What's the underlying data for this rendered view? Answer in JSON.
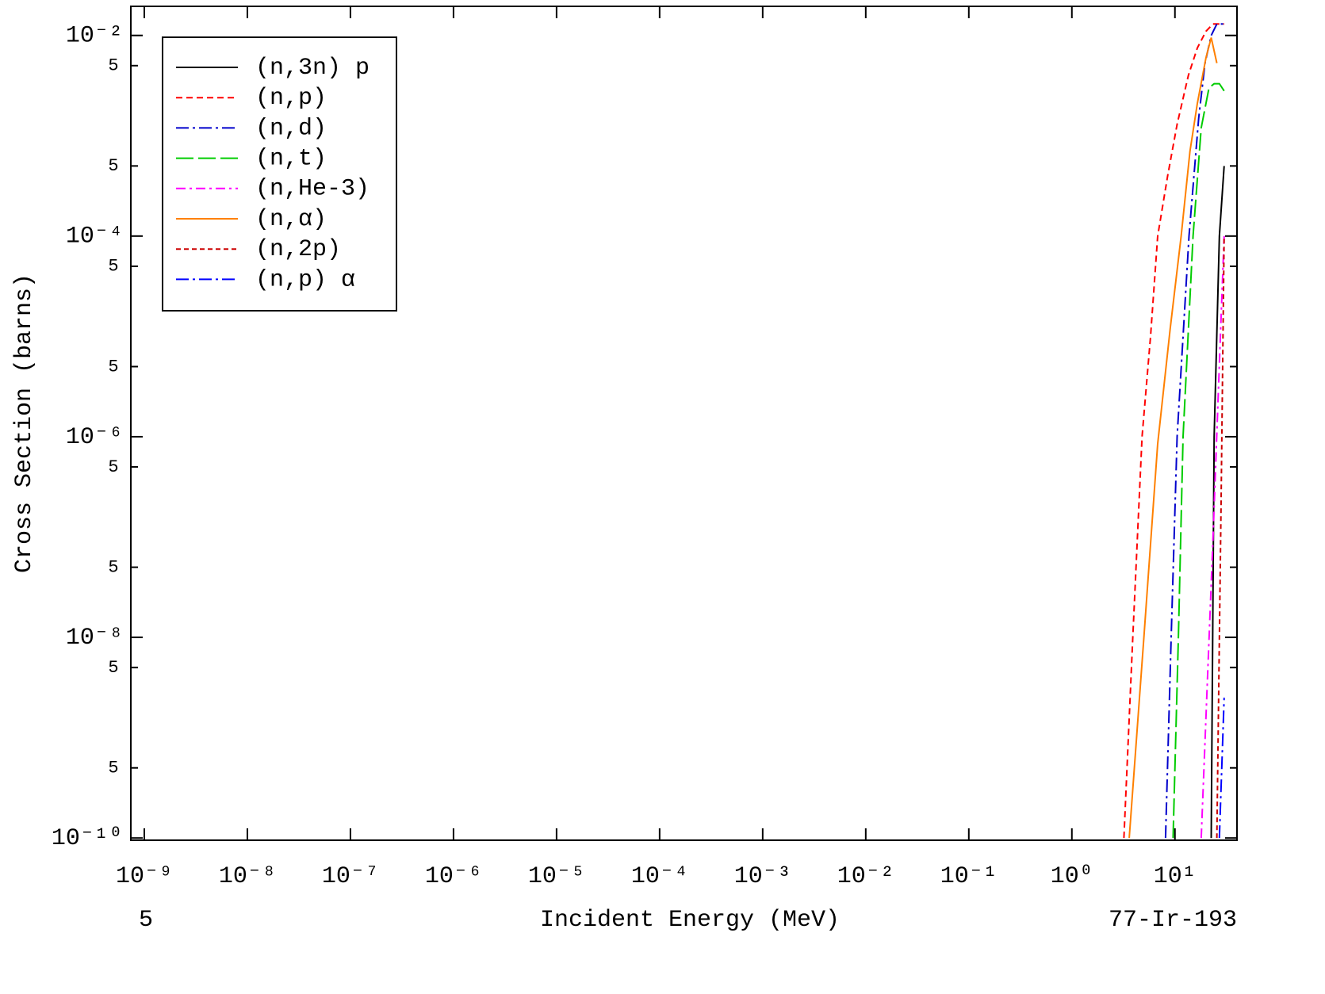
{
  "chart_data": {
    "type": "line",
    "xlabel": "Incident Energy (MeV)",
    "ylabel": "Cross Section (barns)",
    "annotations": [
      "5",
      "77-Ir-193"
    ],
    "xscale": "log",
    "yscale": "log",
    "xlim": [
      7.4e-10,
      40
    ],
    "ylim": [
      9.5e-11,
      0.0195
    ],
    "xticks": [
      {
        "value": 1e-09,
        "label": "10⁻⁹"
      },
      {
        "value": 1e-08,
        "label": "10⁻⁸"
      },
      {
        "value": 1e-07,
        "label": "10⁻⁷"
      },
      {
        "value": 1e-06,
        "label": "10⁻⁶"
      },
      {
        "value": 1e-05,
        "label": "10⁻⁵"
      },
      {
        "value": 0.0001,
        "label": "10⁻⁴"
      },
      {
        "value": 0.001,
        "label": "10⁻³"
      },
      {
        "value": 0.01,
        "label": "10⁻²"
      },
      {
        "value": 0.1,
        "label": "10⁻¹"
      },
      {
        "value": 1,
        "label": "10⁰"
      },
      {
        "value": 10,
        "label": "10¹"
      }
    ],
    "yticks": [
      {
        "value": 0.01,
        "label": "10⁻²"
      },
      {
        "value": 0.005,
        "label": "5"
      },
      {
        "value": 0.0005,
        "label": "5"
      },
      {
        "value": 0.0001,
        "label": "10⁻⁴"
      },
      {
        "value": 5e-05,
        "label": "5"
      },
      {
        "value": 5e-06,
        "label": "5"
      },
      {
        "value": 1e-06,
        "label": "10⁻⁶"
      },
      {
        "value": 5e-07,
        "label": "5"
      },
      {
        "value": 5e-08,
        "label": "5"
      },
      {
        "value": 1e-08,
        "label": "10⁻⁸"
      },
      {
        "value": 5e-09,
        "label": "5"
      },
      {
        "value": 5e-10,
        "label": "5"
      },
      {
        "value": 1e-10,
        "label": "10⁻¹⁰"
      }
    ],
    "legend": "upper left",
    "series": [
      {
        "name": "(n,3n) p",
        "color": "#000000",
        "dash": "none",
        "x": [
          22.5,
          24,
          27,
          30
        ],
        "values": [
          1e-10,
          1e-06,
          0.0001,
          0.0005
        ]
      },
      {
        "name": "(n,p)",
        "color": "#ff0000",
        "dash": "8 5",
        "x": [
          3.2,
          3.9,
          4.8,
          5.8,
          6.8,
          8.5,
          10.5,
          13.5,
          16.5,
          20,
          23.4,
          30
        ],
        "values": [
          1e-10,
          1e-08,
          1e-06,
          1e-05,
          0.0001,
          0.0004,
          0.0013,
          0.004,
          0.0075,
          0.011,
          0.013,
          0.013
        ]
      },
      {
        "name": "(n,d)",
        "color": "#0000cc",
        "dash": "16 5 3 5",
        "x": [
          8.1,
          9.2,
          10.5,
          13.7,
          17,
          19.6,
          22.5,
          25.5,
          30
        ],
        "values": [
          1e-10,
          1e-08,
          1e-06,
          0.0001,
          0.0015,
          0.0053,
          0.01,
          0.013,
          0.013
        ]
      },
      {
        "name": "(n,t)",
        "color": "#00cc00",
        "dash": "22 6",
        "x": [
          9.6,
          10.8,
          12,
          15,
          18,
          21.4,
          24,
          27,
          30
        ],
        "values": [
          1e-10,
          1e-08,
          1e-06,
          0.0001,
          0.0012,
          0.003,
          0.0033,
          0.0033,
          0.0028
        ]
      },
      {
        "name": "(n,He-3)",
        "color": "#ff00ff",
        "dash": "12 5 3 5",
        "x": [
          18,
          23.4,
          28,
          30
        ],
        "values": [
          1e-10,
          9.5e-08,
          1.5e-05,
          0.0001
        ]
      },
      {
        "name": "(n,α)",
        "color": "#ff8000",
        "dash": "none",
        "x": [
          3.6,
          5,
          6.8,
          9,
          11.5,
          14,
          16.5,
          20,
          22.5,
          25.5
        ],
        "values": [
          1e-10,
          1e-08,
          8.5e-07,
          1.2e-05,
          0.0001,
          0.0007,
          0.0021,
          0.006,
          0.0095,
          0.0053
        ]
      },
      {
        "name": "(n,2p)",
        "color": "#cc0000",
        "dash": "6 4",
        "x": [
          25.5,
          28,
          30
        ],
        "values": [
          1e-10,
          2e-07,
          0.0001
        ]
      },
      {
        "name": "(n,p) α",
        "color": "#0000ff",
        "dash": "16 5 3 5",
        "x": [
          27,
          30
        ],
        "values": [
          1e-10,
          2.5e-09
        ]
      }
    ]
  }
}
